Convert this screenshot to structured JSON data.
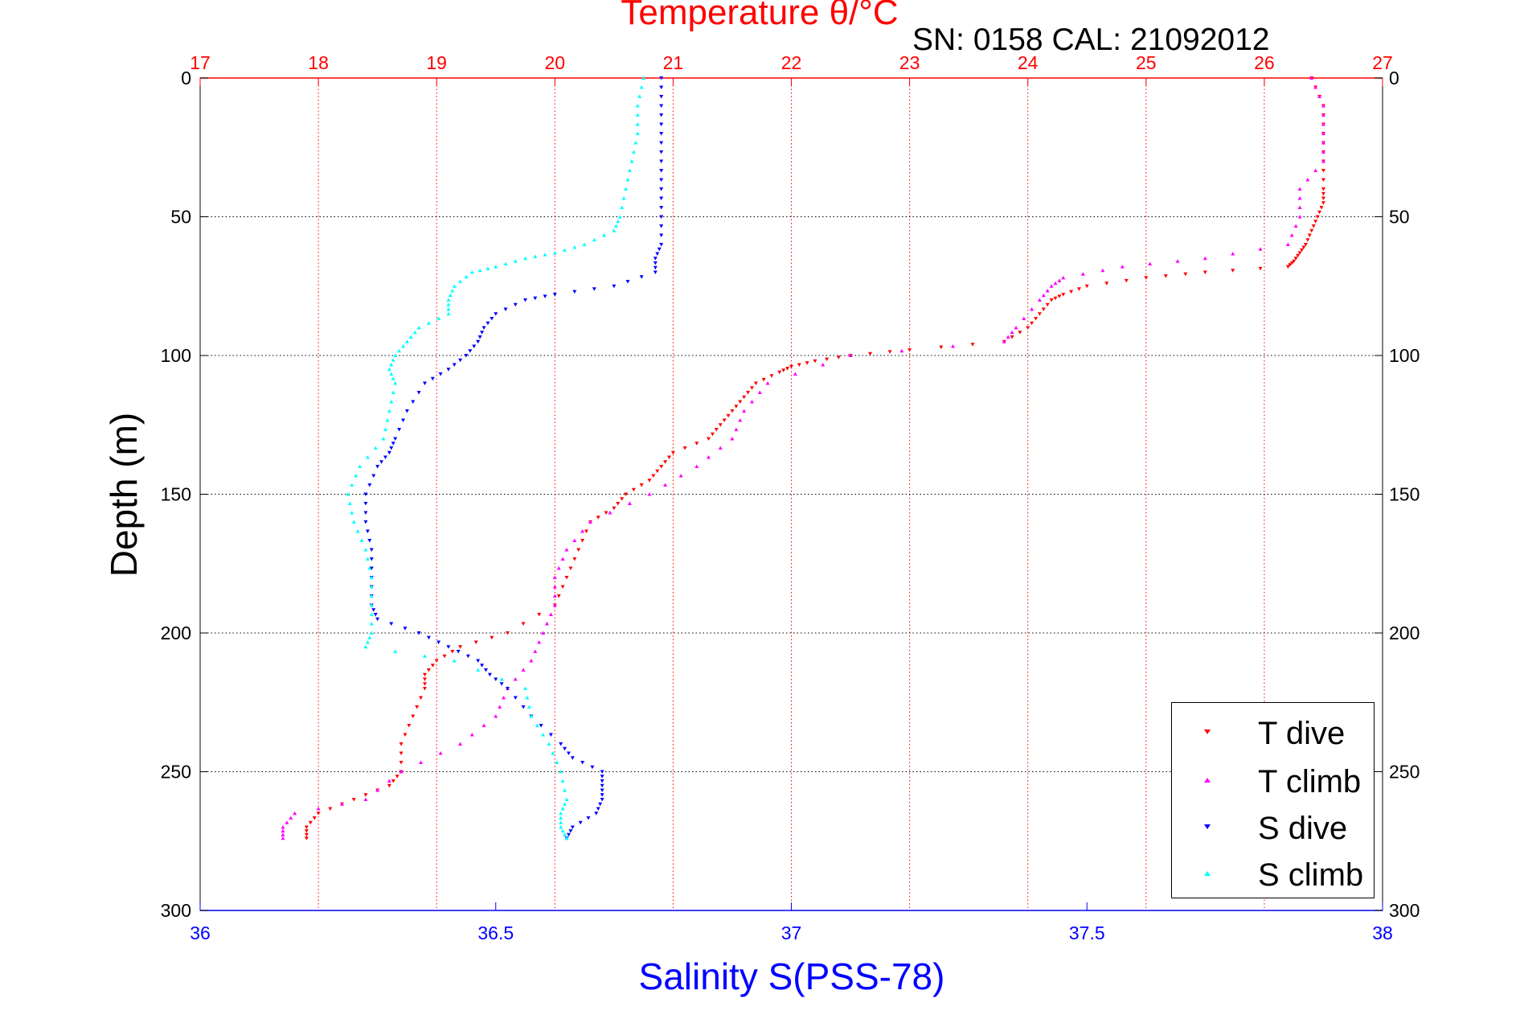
{
  "chart_data": {
    "type": "scatter",
    "title": "Temperature θ/°C",
    "subtitle": "SN: 0158  CAL: 21092012",
    "xlabel": "Salinity S(PSS-78)",
    "ylabel": "Depth (m)",
    "x_bottom": {
      "label": "Salinity S(PSS-78)",
      "range": [
        36,
        38
      ],
      "ticks": [
        "36",
        "36.5",
        "37",
        "37.5",
        "38"
      ],
      "color": "#0000ff"
    },
    "x_top": {
      "label": "Temperature θ/°C",
      "range": [
        17,
        27
      ],
      "ticks": [
        "17",
        "18",
        "19",
        "20",
        "21",
        "22",
        "23",
        "24",
        "25",
        "26",
        "27"
      ],
      "color": "#ff0000"
    },
    "y": {
      "label": "Depth (m)",
      "range": [
        0,
        300
      ],
      "reversed": true,
      "ticks": [
        "0",
        "50",
        "100",
        "150",
        "200",
        "250",
        "300"
      ]
    },
    "grid": true,
    "legend_position": "bottom-right",
    "colors": {
      "t_dive": "#ff0000",
      "t_climb": "#ff00ff",
      "s_dive": "#0000ff",
      "s_climb": "#00ffff",
      "top_axis": "#ff0000",
      "bottom_axis": "#0000ff"
    },
    "series": [
      {
        "name": "T dive",
        "axis": "temperature",
        "marker": "triangle-down",
        "color": "#ff0000",
        "depth": [
          0,
          10,
          20,
          30,
          40,
          45,
          50,
          55,
          60,
          63,
          66,
          68,
          70,
          72,
          75,
          78,
          80,
          85,
          90,
          95,
          98,
          100,
          102,
          104,
          106,
          110,
          115,
          120,
          125,
          130,
          135,
          140,
          145,
          150,
          155,
          160,
          170,
          180,
          190,
          200,
          205,
          210,
          215,
          220,
          230,
          240,
          250,
          255,
          260,
          265,
          270,
          274
        ],
        "value": [
          26.4,
          26.5,
          26.5,
          26.5,
          26.5,
          26.5,
          26.45,
          26.4,
          26.35,
          26.3,
          26.25,
          26.2,
          25.5,
          25,
          24.5,
          24.3,
          24.2,
          24.1,
          24,
          23.8,
          23,
          22.5,
          22.2,
          22,
          21.9,
          21.7,
          21.6,
          21.5,
          21.4,
          21.3,
          21,
          20.9,
          20.8,
          20.6,
          20.5,
          20.3,
          20.2,
          20.1,
          20,
          19.6,
          19.2,
          19,
          18.9,
          18.9,
          18.8,
          18.7,
          18.7,
          18.6,
          18.3,
          18,
          17.9,
          17.9
        ]
      },
      {
        "name": "T climb",
        "axis": "temperature",
        "marker": "triangle-up",
        "color": "#ff00ff",
        "depth": [
          0,
          10,
          20,
          30,
          40,
          50,
          60,
          65,
          68,
          72,
          75,
          80,
          90,
          95,
          100,
          110,
          120,
          130,
          140,
          150,
          160,
          170,
          180,
          190,
          200,
          210,
          220,
          230,
          240,
          250,
          260,
          265,
          270,
          274
        ],
        "value": [
          26.4,
          26.5,
          26.5,
          26.5,
          26.3,
          26.3,
          26.2,
          25.5,
          24.8,
          24.3,
          24.2,
          24.1,
          23.9,
          23.8,
          22.5,
          21.8,
          21.6,
          21.5,
          21.2,
          20.8,
          20.3,
          20.1,
          20,
          20,
          19.9,
          19.8,
          19.6,
          19.5,
          19.2,
          18.7,
          18.4,
          17.8,
          17.7,
          17.7
        ]
      },
      {
        "name": "S dive",
        "axis": "salinity",
        "marker": "triangle-down",
        "color": "#0000ff",
        "depth": [
          0,
          10,
          20,
          30,
          40,
          50,
          60,
          65,
          70,
          75,
          78,
          80,
          85,
          90,
          95,
          100,
          105,
          110,
          120,
          130,
          135,
          140,
          150,
          160,
          170,
          180,
          190,
          195,
          200,
          205,
          210,
          215,
          220,
          230,
          240,
          245,
          250,
          255,
          260,
          265,
          270,
          274
        ],
        "value": [
          36.78,
          36.78,
          36.78,
          36.78,
          36.78,
          36.78,
          36.78,
          36.77,
          36.77,
          36.7,
          36.6,
          36.55,
          36.5,
          36.48,
          36.47,
          36.45,
          36.42,
          36.38,
          36.35,
          36.33,
          36.32,
          36.3,
          36.28,
          36.28,
          36.29,
          36.29,
          36.29,
          36.3,
          36.37,
          36.42,
          36.47,
          36.49,
          36.52,
          36.56,
          36.61,
          36.63,
          36.68,
          36.68,
          36.68,
          36.67,
          36.63,
          36.62
        ]
      },
      {
        "name": "S climb",
        "axis": "salinity",
        "marker": "triangle-up",
        "color": "#00ffff",
        "depth": [
          0,
          10,
          20,
          30,
          40,
          50,
          55,
          60,
          63,
          65,
          68,
          70,
          75,
          80,
          85,
          90,
          95,
          100,
          105,
          110,
          120,
          130,
          140,
          150,
          160,
          170,
          180,
          190,
          200,
          205,
          210,
          220,
          230,
          240,
          250,
          260,
          265,
          270,
          274
        ],
        "value": [
          36.75,
          36.74,
          36.74,
          36.73,
          36.72,
          36.71,
          36.7,
          36.65,
          36.6,
          36.55,
          36.5,
          36.46,
          36.43,
          36.42,
          36.42,
          36.37,
          36.35,
          36.33,
          36.32,
          36.33,
          36.32,
          36.31,
          36.27,
          36.25,
          36.26,
          36.28,
          36.29,
          36.29,
          36.29,
          36.28,
          36.43,
          36.55,
          36.56,
          36.59,
          36.61,
          36.62,
          36.61,
          36.61,
          36.62
        ]
      }
    ]
  }
}
